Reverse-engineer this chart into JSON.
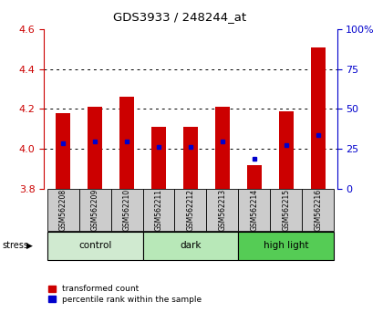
{
  "title": "GDS3933 / 248244_at",
  "samples": [
    "GSM562208",
    "GSM562209",
    "GSM562210",
    "GSM562211",
    "GSM562212",
    "GSM562213",
    "GSM562214",
    "GSM562215",
    "GSM562216"
  ],
  "red_values": [
    4.18,
    4.21,
    4.26,
    4.11,
    4.11,
    4.21,
    3.92,
    4.19,
    4.51
  ],
  "blue_values": [
    4.03,
    4.04,
    4.04,
    4.01,
    4.01,
    4.04,
    3.95,
    4.02,
    4.07
  ],
  "ylim_left": [
    3.8,
    4.6
  ],
  "ylim_right": [
    0,
    100
  ],
  "yticks_left": [
    3.8,
    4.0,
    4.2,
    4.4,
    4.6
  ],
  "yticks_right": [
    0,
    25,
    50,
    75,
    100
  ],
  "ytick_labels_right": [
    "0",
    "25",
    "50",
    "75",
    "100%"
  ],
  "groups": [
    {
      "label": "control",
      "indices": [
        0,
        1,
        2
      ],
      "color": "#d0ead0"
    },
    {
      "label": "dark",
      "indices": [
        3,
        4,
        5
      ],
      "color": "#b8e8b8"
    },
    {
      "label": "high light",
      "indices": [
        6,
        7,
        8
      ],
      "color": "#55cc55"
    }
  ],
  "bar_bottom": 3.8,
  "red_color": "#cc0000",
  "blue_color": "#0000cc",
  "bar_width": 0.45,
  "legend_red": "transformed count",
  "legend_blue": "percentile rank within the sample",
  "tick_color_left": "#cc0000",
  "tick_color_right": "#0000cc",
  "bg_xlabel": "#cccccc",
  "grid_dotted_at": [
    4.0,
    4.2,
    4.4
  ],
  "stress_label": "stress"
}
